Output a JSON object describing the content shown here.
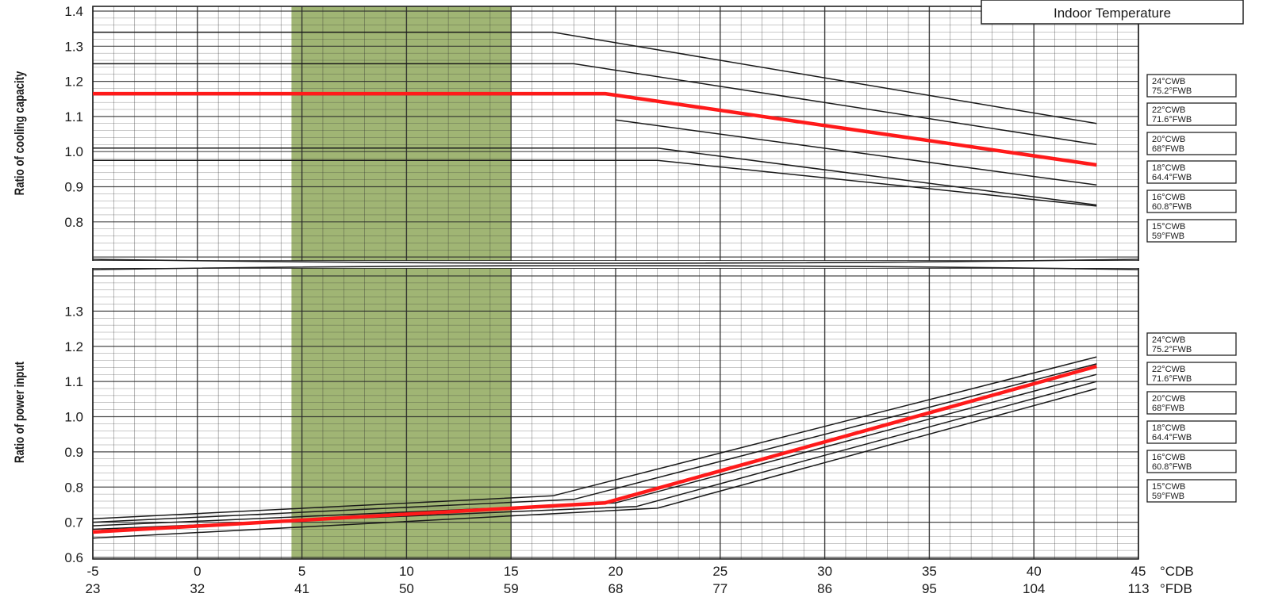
{
  "header_box": {
    "label": "Indoor Temperature"
  },
  "chart_data": [
    {
      "type": "line",
      "panel": "top",
      "ylabel": "Ratio of cooling capacity",
      "ylim": [
        0.7,
        1.4
      ],
      "yticks": [
        0.8,
        0.9,
        1.0,
        1.1,
        1.2,
        1.3,
        1.4
      ],
      "xlim": [
        -5,
        45
      ],
      "highlight_band": {
        "x": [
          4.5,
          15
        ],
        "color": "#8fa85c"
      },
      "highlight_line_color": "#ff1a1a",
      "legend": [
        {
          "line1": "24°CWB",
          "line2": "75.2°FWB"
        },
        {
          "line1": "22°CWB",
          "line2": "71.6°FWB"
        },
        {
          "line1": "20°CWB",
          "line2": "68°FWB"
        },
        {
          "line1": "18°CWB",
          "line2": "64.4°FWB"
        },
        {
          "line1": "16°CWB",
          "line2": "60.8°FWB"
        },
        {
          "line1": "15°CWB",
          "line2": "59°FWB"
        }
      ],
      "series": [
        {
          "x": [
            -5,
            17,
            43
          ],
          "y": [
            1.34,
            1.34,
            1.08
          ]
        },
        {
          "x": [
            -5,
            18,
            43
          ],
          "y": [
            1.25,
            1.25,
            1.02
          ]
        },
        {
          "x": [
            20,
            43
          ],
          "y": [
            1.09,
            0.905
          ]
        },
        {
          "x": [
            -5,
            22,
            43
          ],
          "y": [
            1.01,
            1.01,
            0.848
          ]
        },
        {
          "x": [
            -5,
            22,
            43
          ],
          "y": [
            0.975,
            0.975,
            0.845
          ]
        },
        {
          "x": [
            -5,
            19.5,
            43
          ],
          "y": [
            1.165,
            1.165,
            0.962
          ],
          "highlight": true
        }
      ]
    },
    {
      "type": "line",
      "panel": "bottom",
      "ylabel": "Ratio of power input",
      "ylim": [
        0.6,
        1.4
      ],
      "yticks": [
        0.6,
        0.7,
        0.8,
        0.9,
        1.0,
        1.1,
        1.2,
        1.3
      ],
      "xlim": [
        -5,
        45
      ],
      "xticks_c": [
        -5,
        0,
        5,
        10,
        15,
        20,
        25,
        30,
        35,
        40,
        45
      ],
      "xticks_f": [
        23,
        32,
        41,
        50,
        59,
        68,
        77,
        86,
        95,
        104,
        113
      ],
      "xunit_c": "°CDB",
      "xunit_f": "°FDB",
      "highlight_band": {
        "x": [
          4.5,
          15
        ],
        "color": "#8fa85c"
      },
      "highlight_line_color": "#ff1a1a",
      "legend": [
        {
          "line1": "24°CWB",
          "line2": "75.2°FWB"
        },
        {
          "line1": "22°CWB",
          "line2": "71.6°FWB"
        },
        {
          "line1": "20°CWB",
          "line2": "68°FWB"
        },
        {
          "line1": "18°CWB",
          "line2": "64.4°FWB"
        },
        {
          "line1": "16°CWB",
          "line2": "60.8°FWB"
        },
        {
          "line1": "15°CWB",
          "line2": "59°FWB"
        }
      ],
      "series": [
        {
          "x": [
            -5,
            17,
            43
          ],
          "y": [
            0.71,
            0.775,
            1.17
          ]
        },
        {
          "x": [
            -5,
            18,
            43
          ],
          "y": [
            0.7,
            0.765,
            1.15
          ]
        },
        {
          "x": [
            -5,
            20,
            43
          ],
          "y": [
            0.69,
            0.755,
            1.12
          ]
        },
        {
          "x": [
            -5,
            21,
            43
          ],
          "y": [
            0.68,
            0.745,
            1.1
          ]
        },
        {
          "x": [
            -5,
            22,
            43
          ],
          "y": [
            0.655,
            0.74,
            1.08
          ]
        },
        {
          "x": [
            -5,
            19.5,
            43
          ],
          "y": [
            0.672,
            0.755,
            1.143
          ],
          "highlight": true
        }
      ]
    }
  ]
}
